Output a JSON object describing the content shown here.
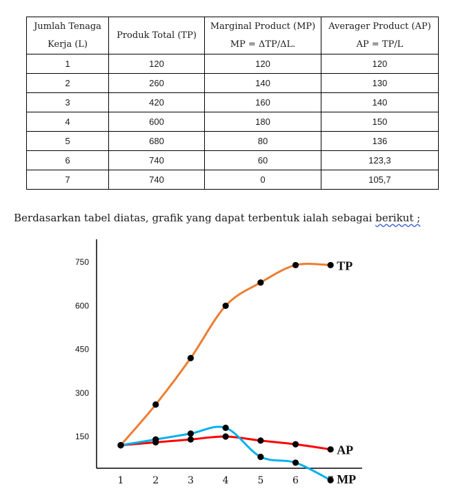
{
  "table": {
    "headers": [
      [
        "Jumlah Tenaga",
        "Kerja (L)"
      ],
      [
        "Produk Total (TP)"
      ],
      [
        "Marginal Product (MP)",
        "MP = ΔTP/ΔL."
      ],
      [
        "Averager Product (AP)",
        "AP = TP/L"
      ]
    ],
    "rows": [
      [
        "1",
        "120",
        "120",
        "120"
      ],
      [
        "2",
        "260",
        "140",
        "130"
      ],
      [
        "3",
        "420",
        "160",
        "140"
      ],
      [
        "4",
        "600",
        "180",
        "150"
      ],
      [
        "5",
        "680",
        "80",
        "136"
      ],
      [
        "6",
        "740",
        "60",
        "123,3"
      ],
      [
        "7",
        "740",
        "0",
        "105,7"
      ]
    ]
  },
  "sentence": {
    "before": "Berdasarkan tabel diatas, grafik yang dapat terbentuk ialah sebagai ",
    "flagged": "berikut ;"
  },
  "chart_data": {
    "type": "line",
    "title": "",
    "xlabel": "",
    "ylabel": "",
    "x": [
      1,
      2,
      3,
      4,
      5,
      6,
      7
    ],
    "y_ticks": [
      "150",
      "300",
      "450",
      "600",
      "750"
    ],
    "x_ticks": [
      "1",
      "2",
      "3",
      "4",
      "5",
      "6",
      "7"
    ],
    "ylim": [
      0,
      800
    ],
    "grid": false,
    "series": [
      {
        "name": "TP",
        "color": "#ed7d31",
        "values": [
          120,
          260,
          420,
          600,
          680,
          740,
          740
        ]
      },
      {
        "name": "AP",
        "color": "#ff0000",
        "values": [
          120,
          130,
          140,
          150,
          136,
          123.3,
          105.7
        ]
      },
      {
        "name": "MP",
        "color": "#00b0f0",
        "values": [
          120,
          140,
          160,
          180,
          80,
          60,
          0
        ]
      }
    ]
  }
}
